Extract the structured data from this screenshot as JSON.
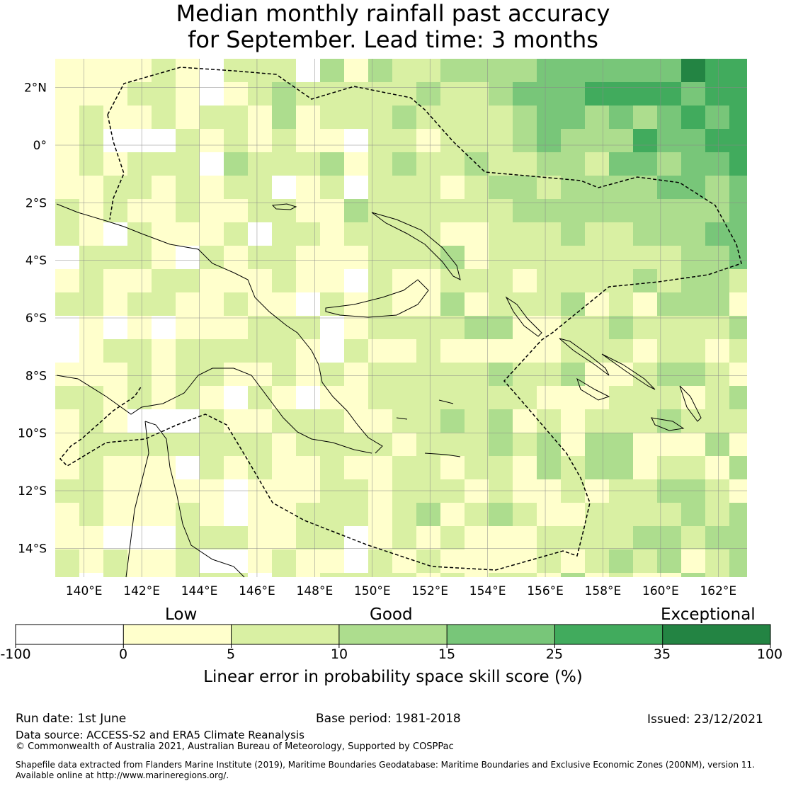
{
  "title": {
    "line1": "Median monthly rainfall past accuracy",
    "line2": "for September. Lead time: 3 months"
  },
  "map": {
    "lon_range": [
      139,
      163
    ],
    "lat_range": [
      -15,
      3
    ],
    "x_ticks": [
      140,
      142,
      144,
      146,
      148,
      150,
      152,
      154,
      156,
      158,
      160,
      162
    ],
    "x_tick_labels": [
      "140°E",
      "142°E",
      "144°E",
      "146°E",
      "148°E",
      "150°E",
      "152°E",
      "154°E",
      "156°E",
      "158°E",
      "160°E",
      "162°E"
    ],
    "y_ticks": [
      2,
      0,
      -2,
      -4,
      -6,
      -8,
      -10,
      -12,
      -14
    ],
    "y_tick_labels": [
      "2°N",
      "0°",
      "2°S",
      "4°S",
      "6°S",
      "8°S",
      "10°S",
      "12°S",
      "14°S"
    ],
    "grid": true,
    "colors": {
      "bin0": "#ffffff",
      "bin1": "#ffffcc",
      "bin2": "#d9f0a3",
      "bin3": "#addd8e",
      "bin4": "#78c679",
      "bin5": "#41ab5d",
      "bin6": "#238443"
    }
  },
  "colorbar": {
    "categories": [
      "Low",
      "Good",
      "Exceptional"
    ],
    "ticks": [
      "-100",
      "0",
      "5",
      "10",
      "15",
      "25",
      "35",
      "100"
    ],
    "label": "Linear error in probability space skill score (%)"
  },
  "footer": {
    "run_date": "Run date: 1st June",
    "base_period": "Base period: 1981-2018",
    "issued": "Issued: 23/12/2021",
    "data_source": "Data source: ACCESS-S2 and ERA5 Climate Reanalysis",
    "copyright": "© Commonwealth of Australia 2021, Australian Bureau of Meteorology, Supported by COSPPac",
    "shapefile1": "Shapefile data extracted from Flanders Marine Institute (2019), Maritime Boundaries Geodatabase: Maritime Boundaries and Exclusive Economic Zones (200NM), version 11.",
    "shapefile2": "Available online at http://www.marineregions.org/."
  }
}
